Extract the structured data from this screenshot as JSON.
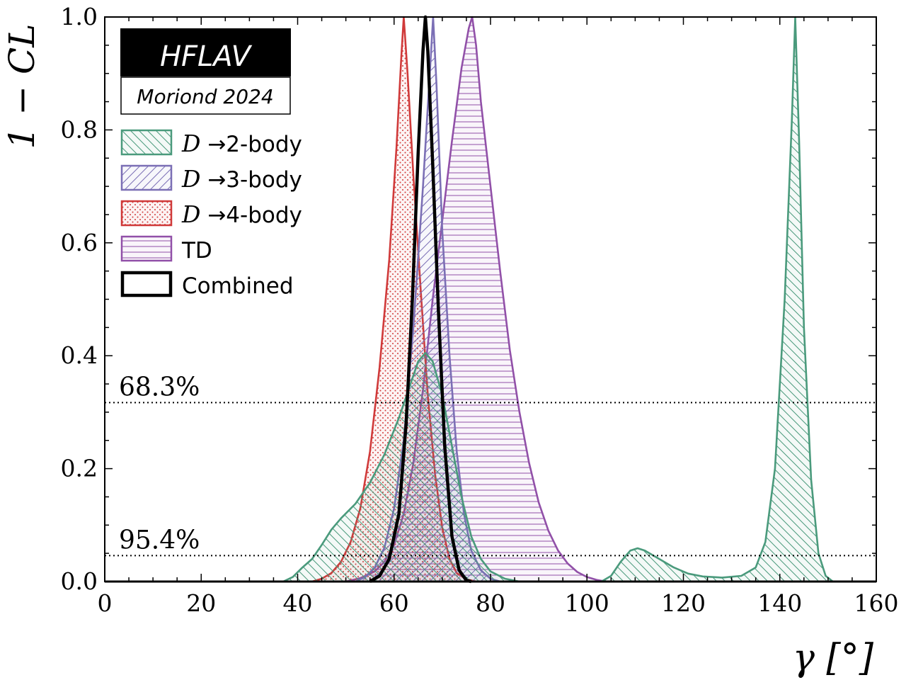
{
  "chart_data": {
    "type": "line",
    "ylabel": "1 − CL",
    "xlabel": "γ [°]",
    "xlim": [
      0,
      160
    ],
    "ylim": [
      0,
      1
    ],
    "xticks": [
      "0",
      "20",
      "40",
      "60",
      "80",
      "100",
      "120",
      "140",
      "160"
    ],
    "yticks": [
      "0.0",
      "0.2",
      "0.4",
      "0.6",
      "0.8",
      "1.0"
    ],
    "badge": {
      "title": "HFLAV",
      "subtitle": "Moriond 2024"
    },
    "reference_lines": [
      {
        "label": "68.3%",
        "y": 0.317
      },
      {
        "label": "95.4%",
        "y": 0.046
      }
    ],
    "colors": {
      "two_body": "#4a9a7c",
      "three_body": "#7b6fb5",
      "four_body": "#d03a3a",
      "td": "#9150a8",
      "combined": "#000000"
    },
    "series": [
      {
        "name": "D →2-body",
        "legend_math": "D",
        "legend_rest": " →2-body",
        "hatch": "backslash",
        "points": [
          [
            37,
            0
          ],
          [
            39,
            0.008
          ],
          [
            41,
            0.025
          ],
          [
            43,
            0.04
          ],
          [
            45,
            0.065
          ],
          [
            47,
            0.092
          ],
          [
            49,
            0.112
          ],
          [
            52,
            0.138
          ],
          [
            55,
            0.175
          ],
          [
            58,
            0.225
          ],
          [
            61,
            0.29
          ],
          [
            63,
            0.34
          ],
          [
            65,
            0.39
          ],
          [
            66.5,
            0.405
          ],
          [
            68,
            0.39
          ],
          [
            70,
            0.33
          ],
          [
            72,
            0.24
          ],
          [
            74,
            0.15
          ],
          [
            76,
            0.08
          ],
          [
            78,
            0.04
          ],
          [
            80,
            0.018
          ],
          [
            83,
            0.005
          ],
          [
            86,
            0
          ],
          [
            103,
            0
          ],
          [
            105,
            0.01
          ],
          [
            107,
            0.035
          ],
          [
            109,
            0.055
          ],
          [
            110.5,
            0.059
          ],
          [
            112,
            0.055
          ],
          [
            115,
            0.04
          ],
          [
            118,
            0.025
          ],
          [
            121,
            0.014
          ],
          [
            124,
            0.009
          ],
          [
            128,
            0.007
          ],
          [
            132,
            0.01
          ],
          [
            135,
            0.025
          ],
          [
            137,
            0.07
          ],
          [
            139,
            0.2
          ],
          [
            141,
            0.5
          ],
          [
            142.5,
            0.82
          ],
          [
            143.2,
            1.0
          ],
          [
            144,
            0.78
          ],
          [
            145,
            0.45
          ],
          [
            146.5,
            0.18
          ],
          [
            148,
            0.05
          ],
          [
            149.5,
            0.01
          ],
          [
            151,
            0
          ]
        ]
      },
      {
        "name": "D →3-body",
        "legend_math": "D",
        "legend_rest": " →3-body",
        "hatch": "slash",
        "points": [
          [
            52,
            0
          ],
          [
            54,
            0.008
          ],
          [
            56,
            0.025
          ],
          [
            58,
            0.06
          ],
          [
            60,
            0.13
          ],
          [
            62,
            0.25
          ],
          [
            64,
            0.45
          ],
          [
            66,
            0.7
          ],
          [
            67.4,
            0.9
          ],
          [
            68.1,
            1.0
          ],
          [
            68.8,
            0.88
          ],
          [
            70,
            0.62
          ],
          [
            71.5,
            0.4
          ],
          [
            73,
            0.23
          ],
          [
            74.5,
            0.12
          ],
          [
            76,
            0.055
          ],
          [
            78,
            0.02
          ],
          [
            80,
            0.005
          ],
          [
            82,
            0
          ]
        ]
      },
      {
        "name": "D →4-body",
        "legend_math": "D",
        "legend_rest": " →4-body",
        "hatch": "dots",
        "points": [
          [
            43,
            0
          ],
          [
            45,
            0.005
          ],
          [
            47,
            0.015
          ],
          [
            49,
            0.035
          ],
          [
            51,
            0.07
          ],
          [
            53,
            0.13
          ],
          [
            55,
            0.23
          ],
          [
            57,
            0.38
          ],
          [
            59,
            0.57
          ],
          [
            60.5,
            0.77
          ],
          [
            61.5,
            0.93
          ],
          [
            62,
            1.0
          ],
          [
            62.8,
            0.9
          ],
          [
            64,
            0.72
          ],
          [
            65.5,
            0.52
          ],
          [
            67,
            0.33
          ],
          [
            68.5,
            0.19
          ],
          [
            70,
            0.095
          ],
          [
            71.5,
            0.04
          ],
          [
            73,
            0.015
          ],
          [
            75,
            0.004
          ],
          [
            77,
            0
          ]
        ]
      },
      {
        "name": "TD",
        "legend_math": "",
        "legend_rest": "TD",
        "hatch": "horizontal",
        "points": [
          [
            50,
            0
          ],
          [
            53,
            0.006
          ],
          [
            56,
            0.018
          ],
          [
            58,
            0.035
          ],
          [
            60,
            0.065
          ],
          [
            62,
            0.12
          ],
          [
            64,
            0.21
          ],
          [
            66,
            0.34
          ],
          [
            68,
            0.5
          ],
          [
            70,
            0.64
          ],
          [
            72,
            0.78
          ],
          [
            74,
            0.91
          ],
          [
            75.5,
            0.98
          ],
          [
            76.2,
            1.0
          ],
          [
            77,
            0.95
          ],
          [
            78,
            0.85
          ],
          [
            80,
            0.7
          ],
          [
            82,
            0.55
          ],
          [
            84,
            0.41
          ],
          [
            86,
            0.3
          ],
          [
            88,
            0.21
          ],
          [
            90,
            0.14
          ],
          [
            92,
            0.09
          ],
          [
            94,
            0.055
          ],
          [
            96,
            0.032
          ],
          [
            98,
            0.017
          ],
          [
            100,
            0.008
          ],
          [
            102,
            0.003
          ],
          [
            104,
            0
          ]
        ]
      },
      {
        "name": "Combined",
        "legend_math": "",
        "legend_rest": "Combined",
        "hatch": "none",
        "points": [
          [
            55,
            0
          ],
          [
            57,
            0.01
          ],
          [
            59,
            0.04
          ],
          [
            61,
            0.12
          ],
          [
            62.5,
            0.28
          ],
          [
            63.8,
            0.5
          ],
          [
            65,
            0.76
          ],
          [
            66,
            0.94
          ],
          [
            66.5,
            1.0
          ],
          [
            67,
            0.94
          ],
          [
            68,
            0.74
          ],
          [
            69.2,
            0.48
          ],
          [
            70.5,
            0.24
          ],
          [
            72,
            0.08
          ],
          [
            73.5,
            0.02
          ],
          [
            75,
            0.002
          ],
          [
            76,
            0
          ]
        ]
      }
    ]
  }
}
